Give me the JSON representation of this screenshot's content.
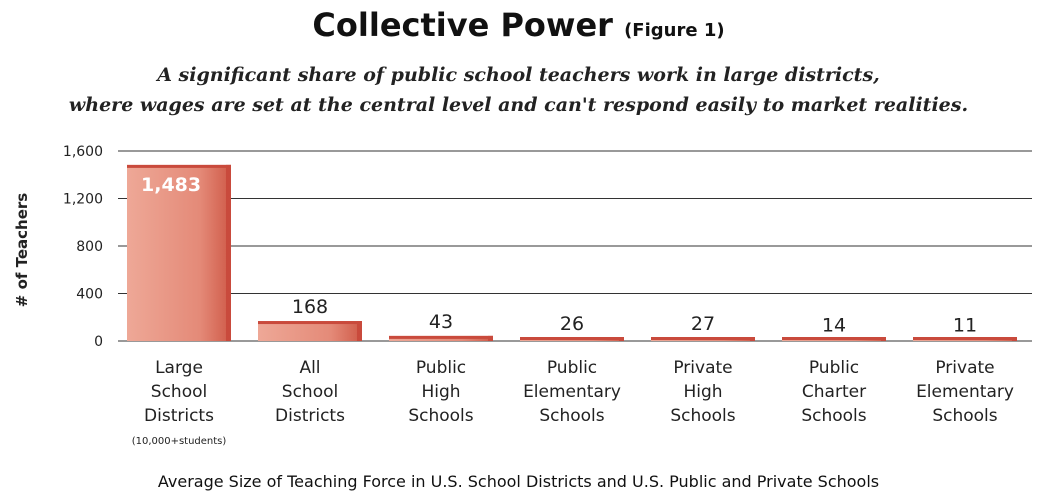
{
  "chart_data": {
    "type": "bar",
    "title": "Collective Power",
    "title_note": "(Figure 1)",
    "subtitle_lines": [
      "A significant share of public school teachers work in large districts,",
      "where wages are set at the central level and can't respond easily to market realities."
    ],
    "ylabel": "# of Teachers",
    "xlabel": "Average Size of Teaching Force in U.S. School Districts and U.S. Public and Private Schools",
    "ylim": [
      0,
      1600
    ],
    "yticks": [
      "0",
      "400",
      "800",
      "1,200",
      "1,600"
    ],
    "ytick_values": [
      0,
      400,
      800,
      1200,
      1600
    ],
    "grid": true,
    "categories": [
      {
        "lines": [
          "Large",
          "School",
          "Districts"
        ],
        "note": "(10,000+students)"
      },
      {
        "lines": [
          "All",
          "School",
          "Districts"
        ]
      },
      {
        "lines": [
          "Public",
          "High",
          "Schools"
        ]
      },
      {
        "lines": [
          "Public",
          "Elementary",
          "Schools"
        ]
      },
      {
        "lines": [
          "Private",
          "High",
          "Schools"
        ]
      },
      {
        "lines": [
          "Public",
          "Charter",
          "Schools"
        ]
      },
      {
        "lines": [
          "Private",
          "Elementary",
          "Schools"
        ]
      }
    ],
    "values": [
      1483,
      168,
      43,
      26,
      27,
      14,
      11
    ],
    "value_labels": [
      "1,483",
      "168",
      "43",
      "26",
      "27",
      "14",
      "11"
    ],
    "colors": {
      "bar": "#e8917f",
      "bar_dark": "#c94a3c",
      "grid": "#333333"
    }
  }
}
